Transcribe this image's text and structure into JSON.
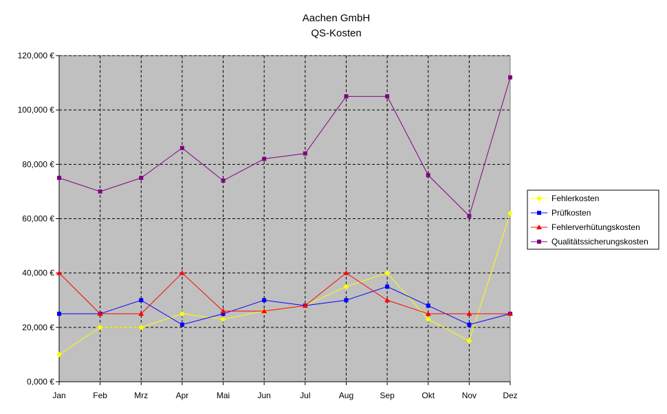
{
  "chart_data": {
    "type": "line",
    "title": "Aachen GmbH",
    "subtitle": "QS-Kosten",
    "xlabel": "",
    "ylabel": "",
    "categories": [
      "Jan",
      "Feb",
      "Mrz",
      "Apr",
      "Mai",
      "Jun",
      "Jul",
      "Aug",
      "Sep",
      "Okt",
      "Nov",
      "Dez"
    ],
    "ylim": [
      0,
      120000
    ],
    "yticks": [
      0,
      20000,
      40000,
      60000,
      80000,
      100000,
      120000
    ],
    "ytick_labels": [
      "0,000 €",
      "20,000 €",
      "40,000 €",
      "60,000 €",
      "80,000 €",
      "100,000 €",
      "120,000 €"
    ],
    "grid": true,
    "plot_background": "#c0c0c0",
    "legend_position": "right",
    "series": [
      {
        "name": "Fehlerkosten",
        "color": "#ffff00",
        "marker": "diamond",
        "values": [
          10000,
          20000,
          20000,
          25000,
          23000,
          26000,
          28000,
          35000,
          40000,
          23000,
          15000,
          62000
        ]
      },
      {
        "name": "Prüfkosten",
        "color": "#0000ff",
        "marker": "square",
        "values": [
          25000,
          25000,
          30000,
          21000,
          25000,
          30000,
          28000,
          30000,
          35000,
          28000,
          21000,
          25000
        ]
      },
      {
        "name": "Fehlerverhütungskosten",
        "color": "#ff0000",
        "marker": "triangle",
        "values": [
          40000,
          25000,
          25000,
          40000,
          26000,
          26000,
          28000,
          40000,
          30000,
          25000,
          25000,
          25000
        ]
      },
      {
        "name": "Qualitätssicherungskosten",
        "color": "#800080",
        "marker": "square",
        "values": [
          75000,
          70000,
          75000,
          86000,
          74000,
          82000,
          84000,
          105000,
          105000,
          76000,
          61000,
          112000
        ]
      }
    ]
  }
}
